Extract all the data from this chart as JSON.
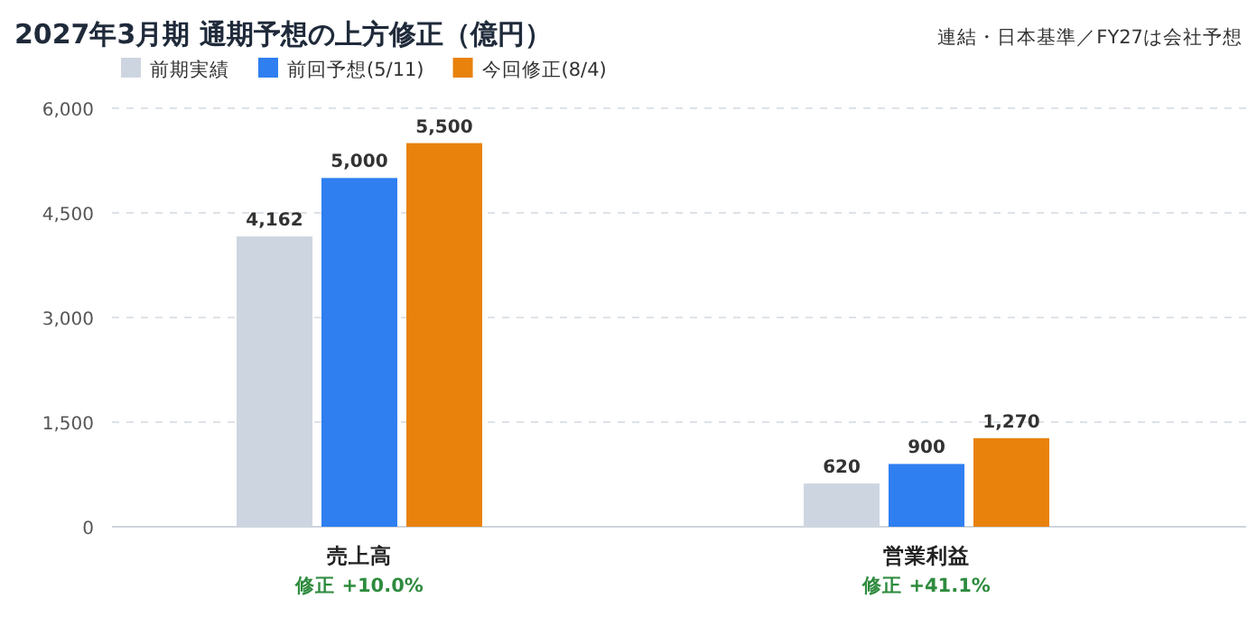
{
  "chart_data": {
    "type": "bar",
    "title": "2027年3月期 通期予想の上方修正（億円）",
    "subtitle": "連結・日本基準／FY27は会社予想",
    "categories": [
      "売上高",
      "営業利益"
    ],
    "series": [
      {
        "name": "前期実績",
        "color": "#cdd5e0",
        "values": [
          4162,
          620
        ],
        "value_labels": [
          "4,162",
          "620"
        ]
      },
      {
        "name": "前回予想(5/11)",
        "color": "#2f7ff0",
        "values": [
          5000,
          900
        ],
        "value_labels": [
          "5,000",
          "900"
        ]
      },
      {
        "name": "今回修正(8/4)",
        "color": "#e8820c",
        "values": [
          5500,
          1270
        ],
        "value_labels": [
          "5,500",
          "1,270"
        ]
      }
    ],
    "ylim": [
      0,
      6000
    ],
    "yticks": [
      0,
      {
        "value": 1500,
        "label": "1,500"
      },
      {
        "value": 3000,
        "label": "3,000"
      },
      {
        "value": 4500,
        "label": "4,500"
      },
      {
        "value": 6000,
        "label": "6,000"
      }
    ],
    "grid": "y",
    "legend": "top left",
    "annotations": [
      "修正 +10.0%",
      "修正 +41.1%"
    ]
  }
}
